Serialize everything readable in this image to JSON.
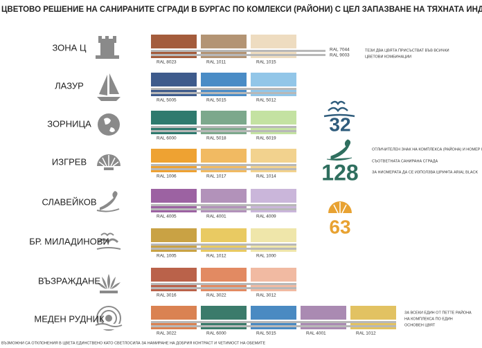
{
  "header": {
    "title": "ЦВЕТОВО РЕШЕНИЕ НА САНИРАНИТЕ СГРАДИ В БУРГАС ПО КОМЛЕКСИ (РАЙОНИ) С ЦЕЛ ЗАПАЗВАНЕ НА ТЯХНАТА ИНДИВИДУАЛНОСТ"
  },
  "rows": [
    {
      "name": "ЗОНА Ц",
      "swatches": [
        {
          "code": "RAL 8023",
          "color": "#a45c3c"
        },
        {
          "code": "RAL 1011",
          "color": "#b39474"
        },
        {
          "code": "RAL 1015",
          "color": "#eedcc0"
        }
      ]
    },
    {
      "name": "ЛАЗУР",
      "swatches": [
        {
          "code": "RAL 5005",
          "color": "#3e5b8c"
        },
        {
          "code": "RAL 5015",
          "color": "#4a8cc6"
        },
        {
          "code": "RAL 5012",
          "color": "#92c6e8"
        }
      ]
    },
    {
      "name": "ЗОРНИЦА",
      "swatches": [
        {
          "code": "RAL 6000",
          "color": "#2f7a6e"
        },
        {
          "code": "RAL 5018",
          "color": "#7ca88c"
        },
        {
          "code": "RAL 6019",
          "color": "#c4e2a2"
        }
      ]
    },
    {
      "name": "ИЗГРЕВ",
      "swatches": [
        {
          "code": "RAL 1006",
          "color": "#eea232"
        },
        {
          "code": "RAL 1017",
          "color": "#f1ba62"
        },
        {
          "code": "RAL 1014",
          "color": "#f2d28e"
        }
      ]
    },
    {
      "name": "СЛАВЕЙКОВ",
      "swatches": [
        {
          "code": "RAL 4005",
          "color": "#9c62a2"
        },
        {
          "code": "RAL 4001",
          "color": "#b292ba"
        },
        {
          "code": "RAL 4009",
          "color": "#cab6da"
        }
      ]
    },
    {
      "name": "БР. МИЛАДИНОВИ",
      "swatches": [
        {
          "code": "RAL 1005",
          "color": "#c9a244"
        },
        {
          "code": "RAL 1012",
          "color": "#e9ca62"
        },
        {
          "code": "RAL 1000",
          "color": "#efe6aa"
        }
      ]
    },
    {
      "name": "ВЪЗРАЖДАНЕ",
      "swatches": [
        {
          "code": "RAL 3016",
          "color": "#ba624a"
        },
        {
          "code": "RAL 3022",
          "color": "#e28a62"
        },
        {
          "code": "RAL 3012",
          "color": "#f1baa2"
        }
      ]
    },
    {
      "name": "МЕДЕН РУДНИК",
      "swatches": [
        {
          "code": "RAL 3022",
          "color": "#da8252"
        },
        {
          "code": "RAL 6000",
          "color": "#3b7b6b"
        },
        {
          "code": "RAL 5015",
          "color": "#4a8ac2"
        },
        {
          "code": "RAL 4001",
          "color": "#aa8ab2"
        },
        {
          "code": "RAL 1012",
          "color": "#e2c262"
        }
      ]
    }
  ],
  "base": {
    "codes": [
      "RAL 7044",
      "RAL 9003"
    ],
    "note": [
      "ТЕЗИ ДВА ЦВЯТА ПРИСЪСТВАТ ВЪВ ВСИЧКИ",
      "ЦВЕТОВИ КОМБИНАЦИИ"
    ]
  },
  "badges": [
    {
      "number": "32",
      "color": "#2f5c7c"
    },
    {
      "number": "128",
      "color": "#2f6f5f"
    },
    {
      "number": "63",
      "color": "#e8a232"
    }
  ],
  "badge_note": [
    "ОТЛИЧИТЕЛЕН ЗНАК НА КОМПЛЕКСА (РАЙОНА) И НОМЕР НА",
    "СЪОТВЕТНАТА САНИРАНА СГРАДА",
    "ЗА НИОМЕРАТА ДА СЕ ИЗПОЛЗВА ШРИФТА ARIAL BLACK"
  ],
  "main_color_note": [
    "ЗА ВСЕКИ ЕДИН ОТ ПЕТТЕ РАЙОНА",
    "НА КОМПЛЕКСА ПО ЕДИН",
    "ОСНОВЕН ЦВЯТ"
  ],
  "footer": "ВЪЗМОЖНИ СА ОТКЛОНЕНИЯ В ЦВЕТА ЕДИНСТВЕНО КАТО СВЕТЛОСИЛА ЗА НАМИРАНЕ НА ДОБРИЯ КОНТРАСТ И ЧЕТИМОСТ НА ОБЕМИТЕ"
}
